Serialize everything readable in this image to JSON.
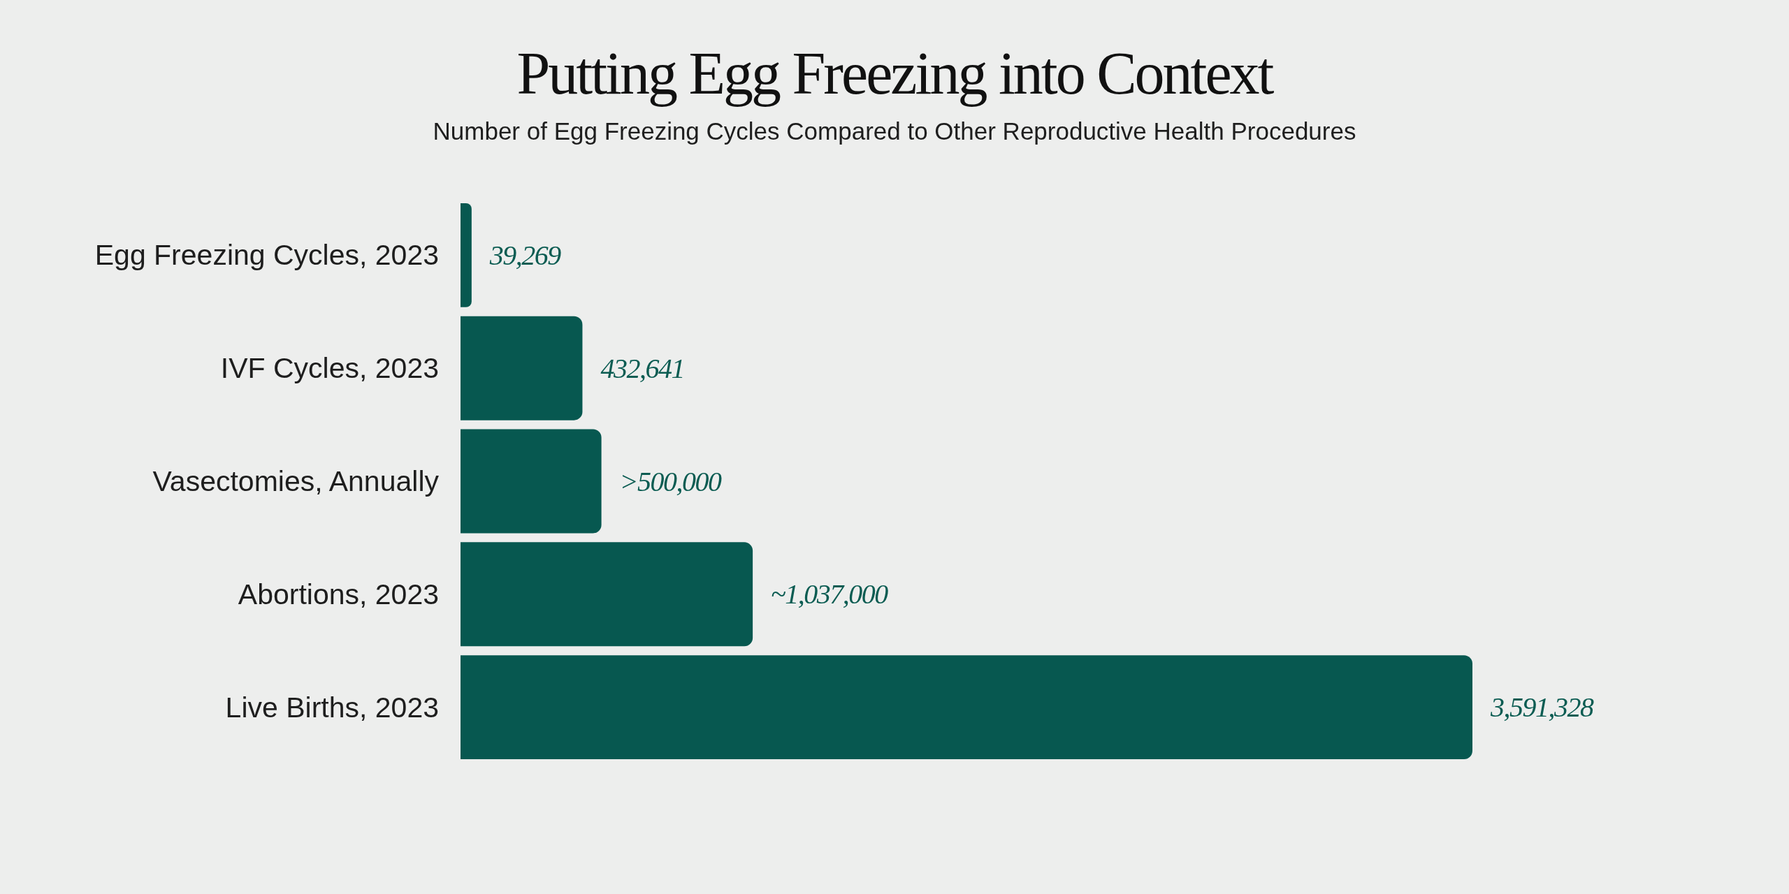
{
  "chart_data": {
    "type": "bar",
    "orientation": "horizontal",
    "title": "Putting Egg Freezing into Context",
    "subtitle": "Number of Egg Freezing Cycles Compared to Other Reproductive Health Procedures",
    "categories": [
      "Egg Freezing Cycles, 2023",
      "IVF Cycles, 2023",
      "Vasectomies, Annually",
      "Abortions, 2023",
      "Live Births, 2023"
    ],
    "values": [
      39269,
      432641,
      500000,
      1037000,
      3591328
    ],
    "value_labels": [
      "39,269",
      "432,641",
      ">500,000",
      "~1,037,000",
      "3,591,328"
    ],
    "color": "#075850",
    "tick_labels": "y"
  }
}
